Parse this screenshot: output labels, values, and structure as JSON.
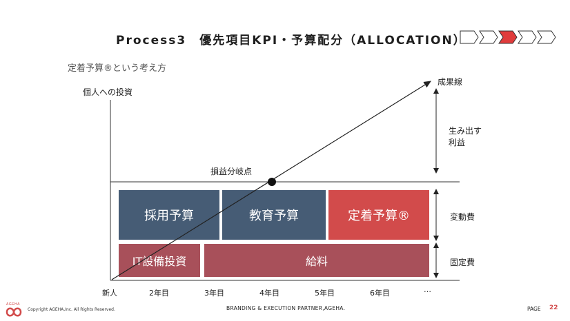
{
  "header": {
    "title": "Process3　優先項目KPI・予算配分（ALLOCATION）",
    "step_count": 5,
    "active_step": 3,
    "active_color": "#e03c3c"
  },
  "subtitle": "定着予算®という考え方",
  "diagram": {
    "y_axis_label": "個人への投資",
    "line_label": "成果線",
    "profit_label": "生み出す\n利益",
    "breakeven_label": "損益分岐点",
    "variable_cost_label": "変動費",
    "fixed_cost_label": "固定費",
    "blocks": {
      "recruit": "採用予算",
      "education": "教育予算",
      "retention": "定着予算®",
      "it": "IT設備投資",
      "salary": "給料"
    },
    "x_ticks": [
      "新人",
      "2年目",
      "3年目",
      "4年目",
      "5年目",
      "6年目",
      "…"
    ],
    "colors": {
      "blue": "#465c75",
      "red": "#d24b4b",
      "wine": "#a8505a"
    }
  },
  "footer": {
    "logo_text": "AGEHA",
    "copyright": "Copyright AGEHA,Inc. All Rights Reserved.",
    "center": "BRANDING & EXECUTION PARTNER,AGEHA.",
    "page_label": "PAGE",
    "page_number": "22"
  }
}
